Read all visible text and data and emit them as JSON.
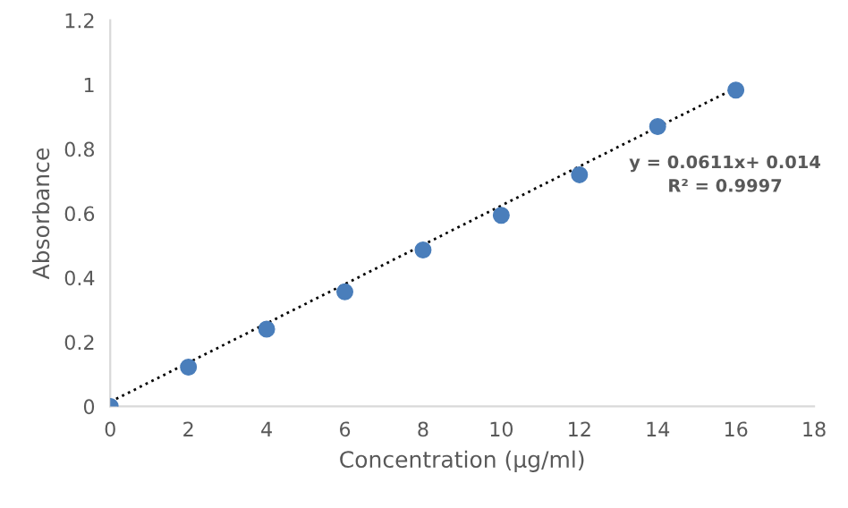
{
  "chart_data": {
    "type": "scatter",
    "xlabel": "Concentration (µg/ml)",
    "ylabel": "Absorbance",
    "xlim": [
      0,
      18
    ],
    "xticks": [
      0,
      2,
      4,
      6,
      8,
      10,
      12,
      14,
      16,
      18
    ],
    "ylim": [
      0,
      1.2
    ],
    "yticks": [
      0,
      0.2,
      0.4,
      0.6,
      0.8,
      1,
      1.2
    ],
    "grid": false,
    "marker": "circle",
    "series": [
      {
        "color": "#4a7ebb",
        "x": [
          0,
          2,
          4,
          6,
          8,
          10,
          12,
          14,
          16
        ],
        "values": [
          0,
          0.122,
          0.24,
          0.356,
          0.486,
          0.594,
          0.72,
          0.87,
          0.983
        ]
      },
      {
        "type": "line",
        "color": "#000000",
        "line_style": "dotted",
        "marker": "none",
        "x": [
          0,
          16
        ],
        "values": [
          0.014,
          0.99
        ]
      }
    ],
    "annotations": [
      "y = 0.0611x+ 0.014\nR² = 0.9997"
    ]
  }
}
